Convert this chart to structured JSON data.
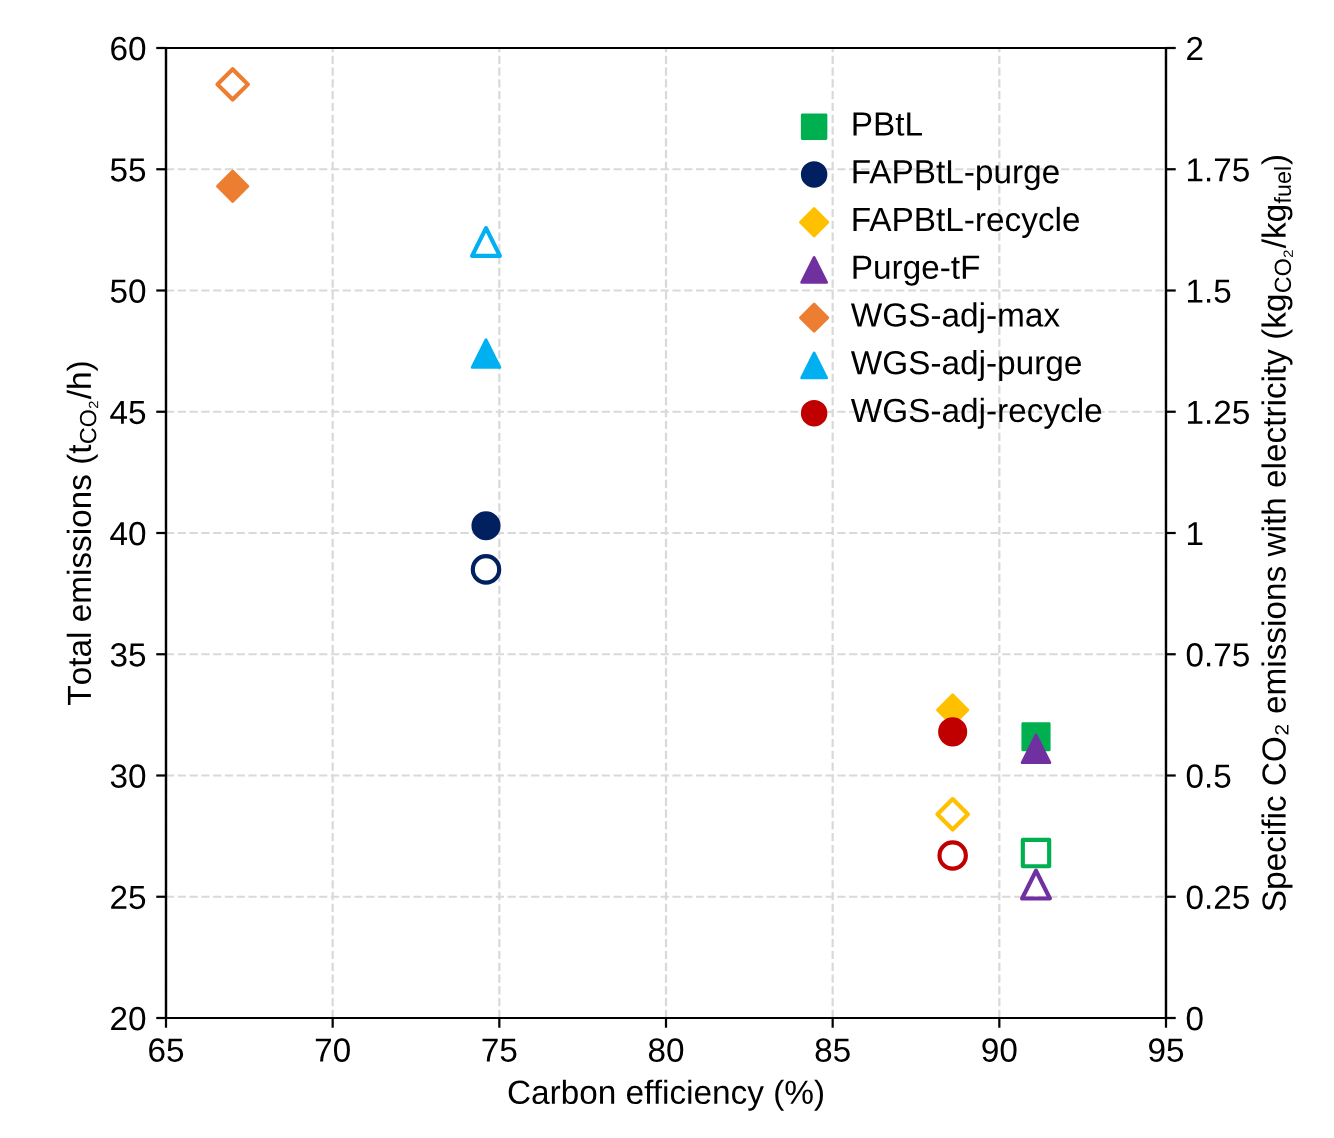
{
  "chart_data": {
    "type": "scatter",
    "xlabel": "Carbon efficiency (%)",
    "ylabel": "Total emissions (t$_{CO₂}$/h)",
    "y2label": "Specific CO₂ emissions with electricity (kg$_{CO₂}$/kg$_{fuel}$)",
    "xlim": [
      65,
      95
    ],
    "xticks": [
      65,
      70,
      75,
      80,
      85,
      90,
      95
    ],
    "ylim": [
      20,
      60
    ],
    "yticks": [
      20,
      25,
      30,
      35,
      40,
      45,
      50,
      55,
      60
    ],
    "y2lim": [
      0,
      2
    ],
    "y2ticks": [
      0,
      0.25,
      0.5,
      0.75,
      1,
      1.25,
      1.5,
      1.75,
      2
    ],
    "grid": true,
    "legend": "top right",
    "series": [
      {
        "name": "PBtL",
        "color": "#00b050",
        "marker": "square",
        "x": [
          91.1
        ],
        "values": [
          31.6
        ]
      },
      {
        "name": "FAPBtL-purge",
        "color": "#002060",
        "marker": "circle",
        "x": [
          74.6
        ],
        "values": [
          40.3
        ]
      },
      {
        "name": "FAPBtL-recycle",
        "color": "#ffc000",
        "marker": "diamond",
        "x": [
          88.6
        ],
        "values": [
          32.7
        ]
      },
      {
        "name": "Purge-tF",
        "color": "#7030a0",
        "marker": "triangle",
        "x": [
          91.1
        ],
        "values": [
          31.1
        ]
      },
      {
        "name": "WGS-adj-max",
        "color": "#ed7d31",
        "marker": "diamond",
        "x": [
          67.0
        ],
        "values": [
          54.3
        ]
      },
      {
        "name": "WGS-adj-purge",
        "color": "#00b0f0",
        "marker": "triangle",
        "x": [
          74.6
        ],
        "values": [
          47.4
        ]
      },
      {
        "name": "WGS-adj-recycle",
        "color": "#c00000",
        "marker": "circle",
        "x": [
          88.6
        ],
        "values": [
          31.8
        ]
      },
      {
        "color": "#00b050",
        "marker": "square",
        "axis": "y2",
        "x": [
          91.1
        ],
        "values": [
          0.34
        ]
      },
      {
        "color": "#002060",
        "marker": "circle",
        "axis": "y2",
        "x": [
          74.6
        ],
        "values": [
          0.925
        ]
      },
      {
        "color": "#ffc000",
        "marker": "diamond",
        "axis": "y2",
        "x": [
          88.6
        ],
        "values": [
          0.42
        ]
      },
      {
        "color": "#7030a0",
        "marker": "triangle",
        "axis": "y2",
        "x": [
          91.1
        ],
        "values": [
          0.275
        ]
      },
      {
        "color": "#ed7d31",
        "marker": "diamond",
        "axis": "y2",
        "x": [
          67.0
        ],
        "values": [
          1.925
        ]
      },
      {
        "color": "#00b0f0",
        "marker": "triangle",
        "axis": "y2",
        "x": [
          74.6
        ],
        "values": [
          1.6
        ]
      },
      {
        "color": "#c00000",
        "marker": "circle",
        "axis": "y2",
        "x": [
          88.6
        ],
        "values": [
          0.335
        ]
      }
    ]
  }
}
